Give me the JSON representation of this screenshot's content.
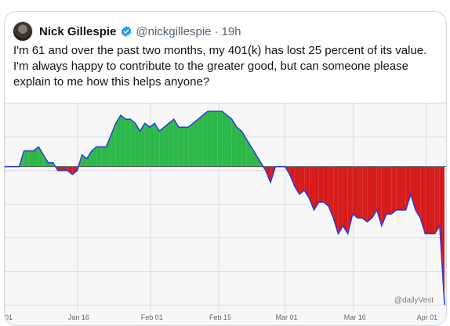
{
  "tweet": {
    "author_name": "Nick Gillespie",
    "handle": "@nickgillespie",
    "separator": "·",
    "time": "19h",
    "text": "I'm 61 and over the past two months, my 401(k) has lost 25 percent of its value. I'm always happy to contribute to the greater good, but can someone please explain to me how this helps anyone?",
    "verified_color": "#1d9bf0"
  },
  "chart_data": {
    "type": "area",
    "watermark": "@dailyVest",
    "x_tick_labels": [
      "01",
      "Jan 16",
      "Feb 01",
      "Feb 15",
      "Mar 01",
      "Mar 16",
      "Apr 01"
    ],
    "baseline": 0,
    "colors": {
      "positive": "#2db84a",
      "negative": "#d61b1b",
      "line": "#2a3bd6"
    },
    "values": [
      0,
      0,
      0,
      0,
      4,
      4,
      4,
      5,
      3,
      1,
      1,
      -1,
      -1,
      -1,
      -2,
      -1,
      3,
      2,
      4,
      5,
      5,
      5,
      8,
      11,
      13,
      12,
      12,
      11,
      9,
      11,
      10,
      11,
      9,
      10,
      11,
      12,
      10,
      10,
      10,
      11,
      12,
      13,
      14,
      14,
      14,
      14,
      13,
      12,
      10,
      9,
      7,
      5,
      3,
      1,
      -1,
      -4,
      0,
      0,
      0,
      -2,
      -5,
      -7,
      -6,
      -8,
      -11,
      -9,
      -9,
      -10,
      -13,
      -17,
      -15,
      -17,
      -12,
      -13,
      -13,
      -14,
      -13,
      -11,
      -15,
      -12,
      -12,
      -11,
      -11,
      -11,
      -7,
      -11,
      -13,
      -17,
      -17,
      -17,
      -15,
      -35
    ],
    "y_range": [
      -36,
      16
    ]
  }
}
